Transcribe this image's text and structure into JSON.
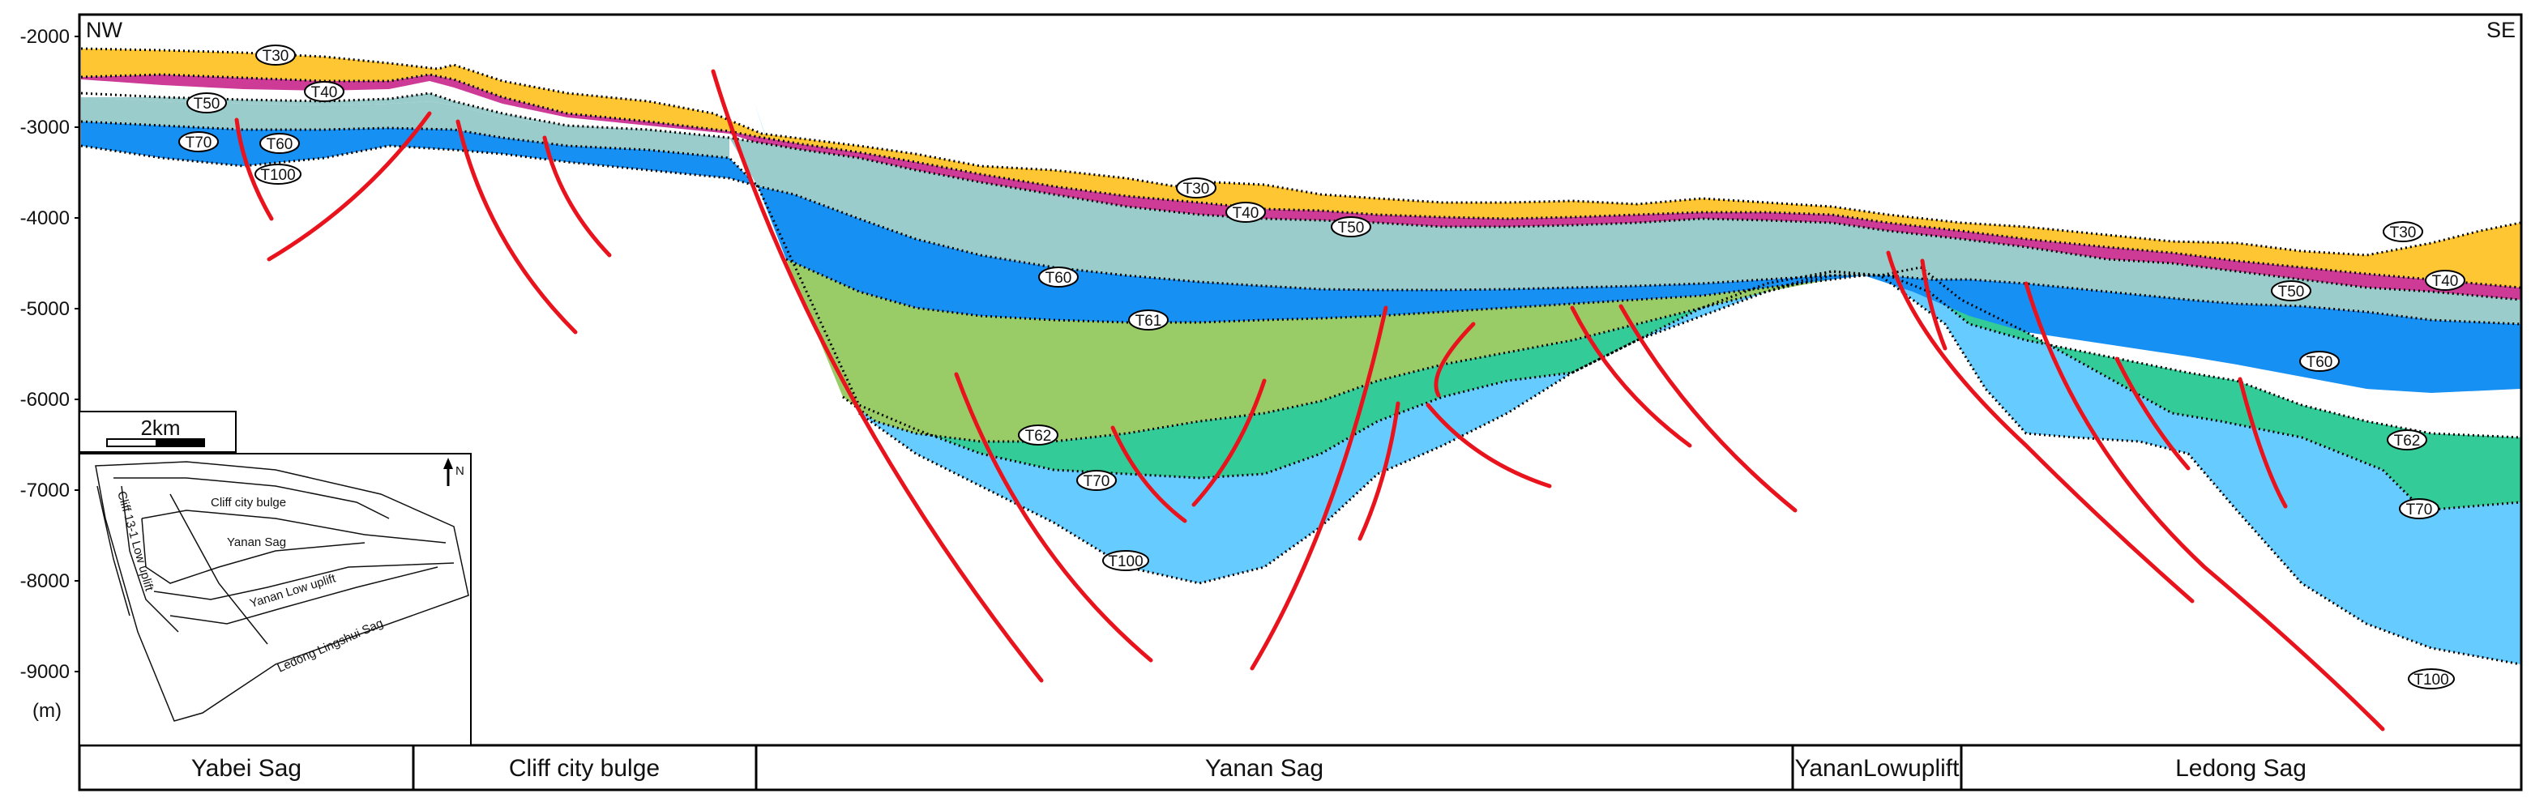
{
  "figure": {
    "direction_left": "NW",
    "direction_right": "SE",
    "unit_label": "(m)",
    "depth_ticks": [
      "-2000",
      "-3000",
      "-4000",
      "-5000",
      "-6000",
      "-7000",
      "-8000",
      "-9000"
    ]
  },
  "horizons": {
    "T30": "T30",
    "T40": "T40",
    "T50": "T50",
    "T60": "T60",
    "T61": "T61",
    "T62": "T62",
    "T70": "T70",
    "T100": "T100"
  },
  "structural_units": [
    "Yabei  Sag",
    "Cliff city bulge",
    "Yanan  Sag",
    "YananLowuplift",
    "Ledong  Sag"
  ],
  "inset": {
    "scale_label": "2km",
    "north_label": "N",
    "unit_labels": {
      "cliff_city_bulge": "Cliff city bulge",
      "yanan_sag": "Yanan   Sag",
      "yanan_low_uplift": "Yanan   Low   uplift",
      "cliff_low_uplift": "Cliff   13-1 Low uplift",
      "ledong_lingshui_sag": "Ledong Lingshui Sag"
    }
  },
  "colors": {
    "T30_unit": "#FFC634",
    "T40_unit": "#CD3B97",
    "T50_unit": "#9ACCCB",
    "T60_unit": "#1690F2",
    "T61_unit": "#99CC66",
    "T62_unit": "#33CC99",
    "T70_unit": "#66CCFF",
    "fault": "#E8131C"
  }
}
